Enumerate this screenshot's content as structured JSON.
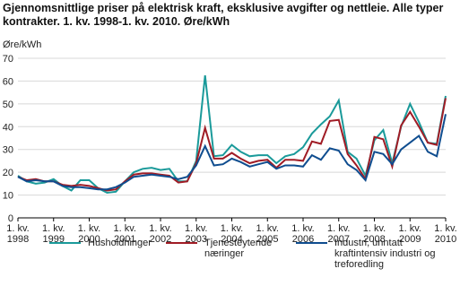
{
  "chart_data": {
    "type": "line",
    "title": "Gjennomsnittlige priser på elektrisk kraft, eksklusive avgifter og nettleie. Alle typer kontrakter. 1. kv. 1998-1. kv. 2010. Øre/kWh",
    "y_label": "Øre/kWh",
    "categories": [
      "1. kv. 1998",
      null,
      null,
      null,
      "1. kv. 1999",
      null,
      null,
      null,
      "1. kv. 2000",
      null,
      null,
      null,
      "1. kv. 2001",
      null,
      null,
      null,
      "1. kv. 2002",
      null,
      null,
      null,
      "1. kv. 2003",
      null,
      null,
      null,
      "1. kv. 2004",
      null,
      null,
      null,
      "1. kv. 2005",
      null,
      null,
      null,
      "1. kv. 2006",
      null,
      null,
      null,
      "1. kv. 2007",
      null,
      null,
      null,
      "1. kv. 2008",
      null,
      null,
      null,
      "1. kv. 2009",
      null,
      null,
      null,
      "1. kv. 2010"
    ],
    "series": [
      {
        "name": "Husholdninger",
        "color": "#1a9a9a",
        "values": [
          18.5,
          16,
          15,
          15.5,
          17,
          14,
          12,
          16.5,
          16.5,
          13,
          11,
          11.5,
          16,
          20,
          21.5,
          22,
          21,
          21.5,
          16,
          16,
          25,
          62.5,
          27,
          27.5,
          32,
          29,
          27,
          27.5,
          27.5,
          24,
          27,
          28,
          31,
          37,
          41,
          44.5,
          51.5,
          29,
          26,
          18.5,
          34,
          38.5,
          24,
          40,
          50,
          42,
          33,
          32.5,
          53.5
        ]
      },
      {
        "name": "Tjenesteytende næringer",
        "color": "#a01c25",
        "values": [
          18,
          16.5,
          17,
          16,
          16,
          14.5,
          14,
          14.5,
          14,
          13,
          12,
          12.5,
          16,
          19,
          19.5,
          19.5,
          19,
          18.5,
          15.5,
          16,
          24,
          39.5,
          26,
          26,
          28.5,
          26,
          24,
          25,
          25.5,
          22,
          25.5,
          25.5,
          25,
          33.5,
          32.5,
          42.5,
          43,
          28,
          23,
          17,
          35.5,
          34.5,
          22.5,
          40.5,
          46.5,
          40,
          33,
          32,
          52.5
        ]
      },
      {
        "name": "Industri, unntatt kraftintensiv industri og treforedling",
        "color": "#0f4d8f",
        "values": [
          18,
          16,
          16.5,
          16,
          16,
          14,
          13.5,
          13.5,
          13,
          12.5,
          12.5,
          13.5,
          15.5,
          18,
          18.5,
          19,
          18.5,
          18,
          17,
          18,
          23,
          31.5,
          23,
          23.5,
          26,
          24.5,
          22.5,
          23.5,
          24.5,
          21.5,
          23,
          23,
          22.5,
          27.5,
          25.5,
          30.5,
          29.5,
          23.5,
          21,
          16.5,
          29,
          28,
          23.5,
          30,
          33,
          36,
          29,
          27,
          45.5
        ]
      }
    ],
    "ylim": [
      0,
      70
    ],
    "yticks": [
      0,
      10,
      20,
      30,
      40,
      50,
      60,
      70
    ],
    "grid": true
  }
}
